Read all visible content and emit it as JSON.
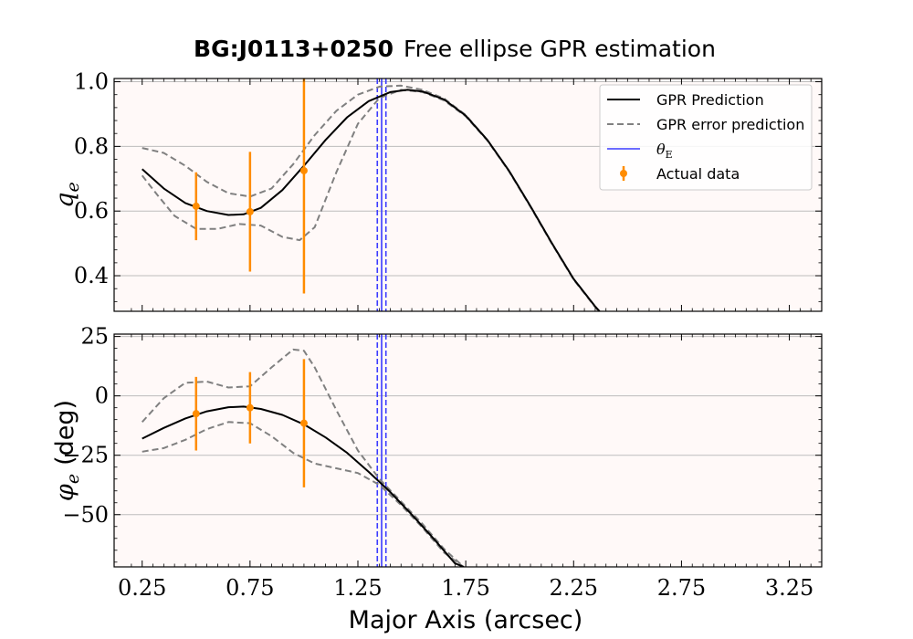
{
  "chart_data": {
    "type": "line",
    "title_bold": "BG:J0113+0250",
    "title_rest": "Free ellipse GPR estimation",
    "xlabel": "Major Axis (arcsec)",
    "xlim": [
      0.12,
      3.4
    ],
    "xticks": [
      0.25,
      0.75,
      1.25,
      1.75,
      2.25,
      2.75,
      3.25
    ],
    "xtick_labels": [
      "0.25",
      "0.75",
      "1.25",
      "1.75",
      "2.25",
      "2.75",
      "3.25"
    ],
    "theta_E": {
      "center": 1.36,
      "lower": 1.34,
      "upper": 1.38,
      "color": "#3b3bff"
    },
    "colors": {
      "prediction": "#000000",
      "error": "#808080",
      "data": "#ff8c00",
      "panel_bg": "#fff9f8",
      "grid": "#bdbdbd"
    },
    "legend": {
      "placement": "top-right",
      "entries": [
        "GPR Prediction",
        "GPR error prediction",
        "θ",
        "Actual data"
      ],
      "theta_subscript": "E"
    },
    "panels": [
      {
        "ylabel_symbol": "q",
        "ylabel_subscript": "e",
        "ylabel_suffix": "",
        "ylim": [
          0.29,
          1.01
        ],
        "yticks": [
          0.4,
          0.6,
          0.8,
          1.0
        ],
        "ytick_labels": [
          "0.4",
          "0.6",
          "0.8",
          "1.0"
        ],
        "prediction": {
          "x": [
            0.25,
            0.35,
            0.45,
            0.55,
            0.65,
            0.72,
            0.8,
            0.9,
            1.0,
            1.1,
            1.2,
            1.3,
            1.4,
            1.48,
            1.55,
            1.65,
            1.75,
            1.85,
            1.95,
            2.05,
            2.15,
            2.25,
            2.35,
            2.37
          ],
          "y": [
            0.73,
            0.67,
            0.625,
            0.6,
            0.588,
            0.59,
            0.61,
            0.665,
            0.74,
            0.82,
            0.89,
            0.94,
            0.968,
            0.975,
            0.97,
            0.945,
            0.895,
            0.82,
            0.725,
            0.615,
            0.5,
            0.39,
            0.305,
            0.29
          ]
        },
        "error_upper": {
          "x": [
            0.25,
            0.35,
            0.45,
            0.55,
            0.65,
            0.75,
            0.85,
            0.95,
            1.05,
            1.15,
            1.25,
            1.35,
            1.45,
            1.55,
            1.65,
            1.75,
            1.85,
            1.95,
            2.05,
            2.15,
            2.25,
            2.35,
            2.37
          ],
          "y": [
            0.795,
            0.78,
            0.74,
            0.69,
            0.655,
            0.645,
            0.67,
            0.745,
            0.835,
            0.91,
            0.96,
            0.985,
            0.988,
            0.975,
            0.948,
            0.897,
            0.82,
            0.725,
            0.615,
            0.5,
            0.39,
            0.305,
            0.29
          ]
        },
        "error_lower": {
          "x": [
            0.25,
            0.32,
            0.4,
            0.5,
            0.6,
            0.7,
            0.8,
            0.9,
            0.98,
            1.05,
            1.15,
            1.25,
            1.35,
            1.45,
            1.55,
            1.65,
            1.75,
            1.85,
            1.95,
            2.05,
            2.15,
            2.25,
            2.35,
            2.37
          ],
          "y": [
            0.71,
            0.65,
            0.585,
            0.545,
            0.545,
            0.56,
            0.555,
            0.52,
            0.51,
            0.55,
            0.72,
            0.87,
            0.95,
            0.975,
            0.968,
            0.942,
            0.893,
            0.818,
            0.723,
            0.613,
            0.498,
            0.388,
            0.303,
            0.288
          ]
        },
        "data_points": [
          {
            "x": 0.5,
            "y": 0.615,
            "yerr": 0.105
          },
          {
            "x": 0.75,
            "y": 0.598,
            "yerr": 0.185
          },
          {
            "x": 1.0,
            "y": 0.725,
            "yerr": 0.38
          }
        ]
      },
      {
        "ylabel_symbol": "φ",
        "ylabel_subscript": "e",
        "ylabel_suffix": "(deg)",
        "ylim": [
          -72,
          26
        ],
        "yticks": [
          -50,
          -25,
          0,
          25
        ],
        "ytick_labels": [
          "−50",
          "−25",
          "0",
          "25"
        ],
        "prediction": {
          "x": [
            0.25,
            0.35,
            0.45,
            0.55,
            0.65,
            0.72,
            0.8,
            0.9,
            1.0,
            1.1,
            1.2,
            1.3,
            1.4,
            1.5,
            1.6,
            1.7,
            1.74
          ],
          "y": [
            -18.0,
            -13.5,
            -9.5,
            -6.5,
            -4.8,
            -4.5,
            -5.5,
            -8.0,
            -12.0,
            -17.5,
            -24.0,
            -32.0,
            -40.5,
            -50.0,
            -60.0,
            -70.5,
            -72.0
          ]
        },
        "error_upper": {
          "x": [
            0.25,
            0.35,
            0.45,
            0.55,
            0.65,
            0.75,
            0.85,
            0.95,
            1.0,
            1.05,
            1.15,
            1.25,
            1.35,
            1.45,
            1.55,
            1.65,
            1.74
          ],
          "y": [
            -11.0,
            -1.0,
            5.5,
            6.0,
            3.5,
            4.0,
            12.0,
            19.5,
            19.0,
            12.0,
            -6.0,
            -23.0,
            -35.0,
            -44.5,
            -54.0,
            -64.5,
            -72.0
          ]
        },
        "error_lower": {
          "x": [
            0.25,
            0.35,
            0.45,
            0.55,
            0.65,
            0.75,
            0.85,
            0.95,
            1.05,
            1.15,
            1.25,
            1.35,
            1.45,
            1.55,
            1.65,
            1.74
          ],
          "y": [
            -23.5,
            -22.0,
            -18.5,
            -14.0,
            -11.0,
            -11.5,
            -17.0,
            -24.0,
            -28.5,
            -30.5,
            -32.5,
            -37.5,
            -46.0,
            -55.5,
            -66.0,
            -72.0
          ]
        },
        "data_points": [
          {
            "x": 0.5,
            "y": -7.5,
            "yerr": 15.5
          },
          {
            "x": 0.75,
            "y": -5.0,
            "yerr": 15.0
          },
          {
            "x": 1.0,
            "y": -11.5,
            "yerr": 27.0
          }
        ]
      }
    ]
  }
}
